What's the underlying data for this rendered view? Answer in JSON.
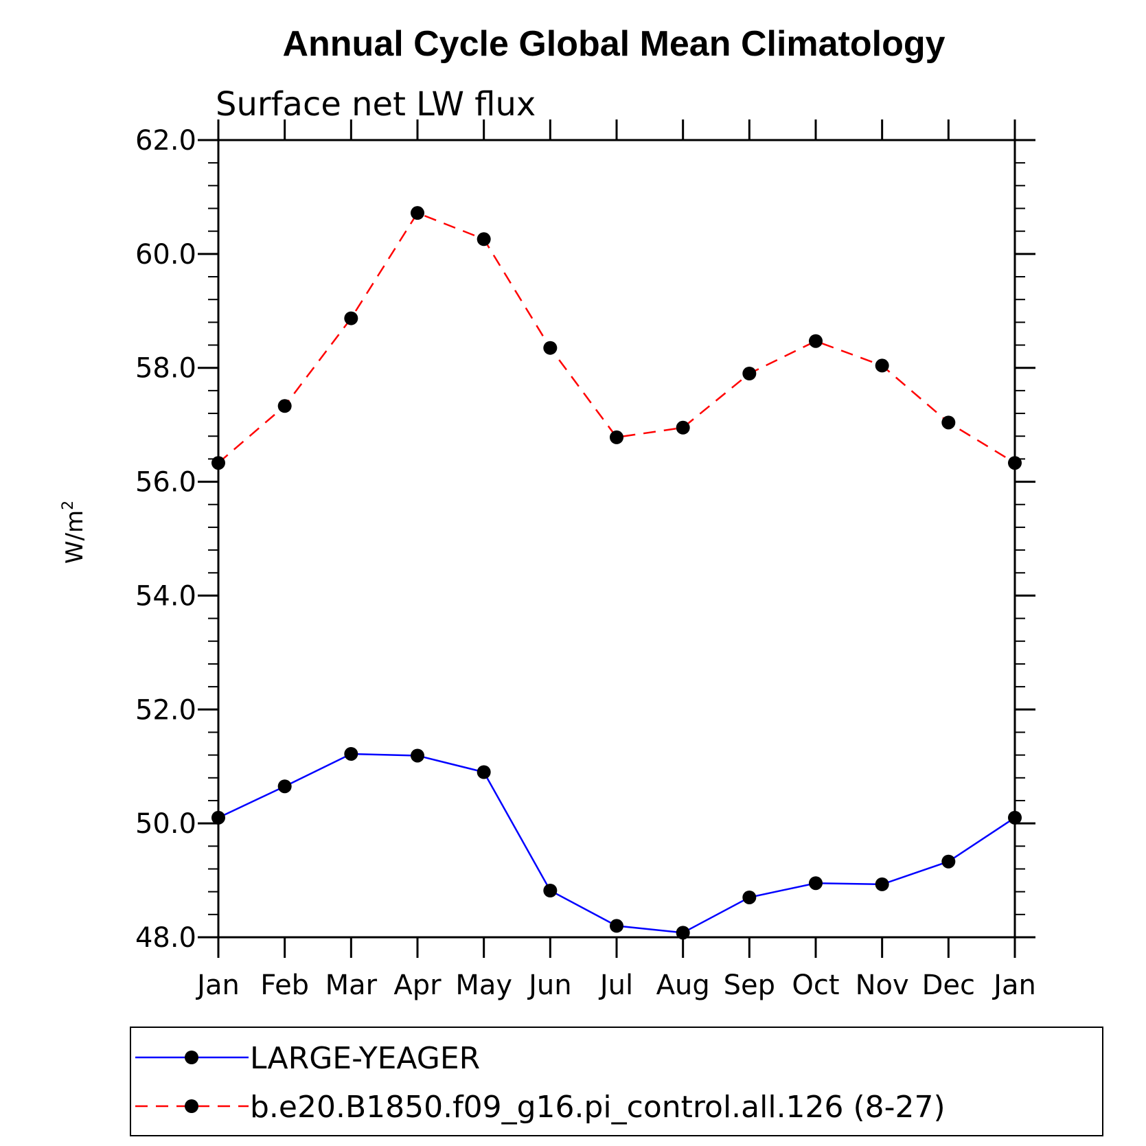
{
  "chart_data": {
    "type": "line",
    "title": "Annual Cycle Global Mean Climatology",
    "subtitle": "Surface net LW flux",
    "ylabel": "W/m",
    "ylabel_sup": "2",
    "xlabel": "",
    "categories": [
      "Jan",
      "Feb",
      "Mar",
      "Apr",
      "May",
      "Jun",
      "Jul",
      "Aug",
      "Sep",
      "Oct",
      "Nov",
      "Dec",
      "Jan"
    ],
    "ylim": [
      48.0,
      62.0
    ],
    "yticks": [
      "48.0",
      "50.0",
      "52.0",
      "54.0",
      "56.0",
      "58.0",
      "60.0",
      "62.0"
    ],
    "grid": false,
    "legend_position": "bottom",
    "series": [
      {
        "name": "LARGE-YEAGER",
        "color": "#0000ff",
        "dash": "solid",
        "values": [
          50.1,
          50.65,
          51.22,
          51.19,
          50.9,
          48.82,
          48.2,
          48.08,
          48.7,
          48.95,
          48.93,
          49.33,
          50.1
        ]
      },
      {
        "name": "b.e20.B1850.f09_g16.pi_control.all.126 (8-27)",
        "color": "#ff0000",
        "dash": "dashed",
        "values": [
          56.33,
          57.33,
          58.87,
          60.72,
          60.26,
          58.35,
          56.78,
          56.95,
          57.9,
          58.47,
          58.04,
          57.04,
          56.33
        ]
      }
    ]
  }
}
